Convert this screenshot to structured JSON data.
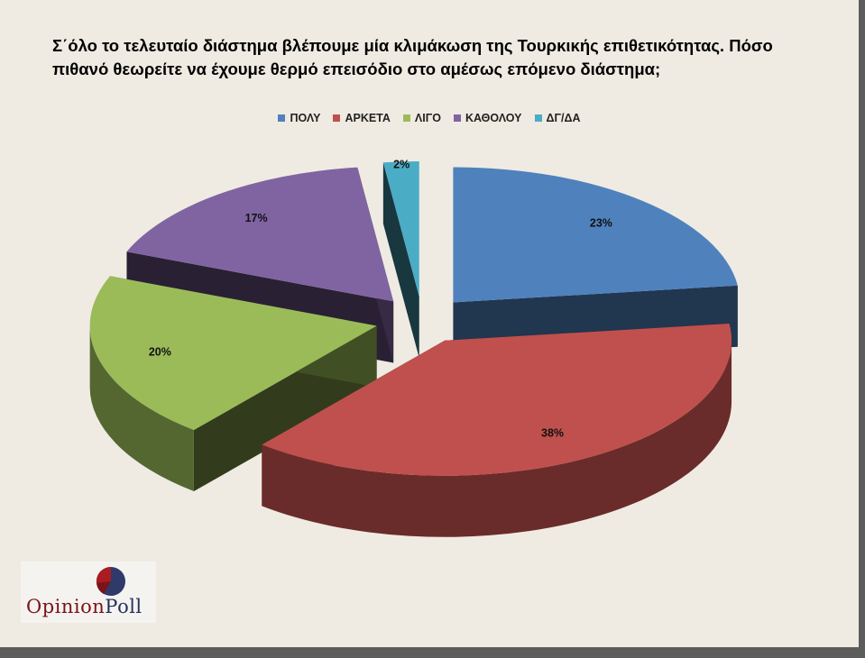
{
  "title": "Σ΄όλο το τελευταίο διάστημα βλέπουμε μία κλιμάκωση της Τουρκικής επιθετικότητας. Πόσο πιθανό θεωρείτε να έχουμε θερμό επεισόδιο στο αμέσως επόμενο διάστημα;",
  "logo": {
    "part1": "Opinion",
    "part2": "Poll"
  },
  "chart_data": {
    "type": "pie",
    "style": "3d-exploded",
    "legend_position": "top",
    "series": [
      {
        "name": "ΠΟΛΥ",
        "value": 23,
        "label": "23%",
        "color": "#4f81bd"
      },
      {
        "name": "ΑΡΚΕΤΑ",
        "value": 38,
        "label": "38%",
        "color": "#c0504d"
      },
      {
        "name": "ΛΙΓΟ",
        "value": 20,
        "label": "20%",
        "color": "#9bbb59"
      },
      {
        "name": "ΚΑΘΟΛΟΥ",
        "value": 17,
        "label": "17%",
        "color": "#8064a2"
      },
      {
        "name": "ΔΓ/ΔΑ",
        "value": 2,
        "label": "2%",
        "color": "#4bacc6"
      }
    ]
  }
}
